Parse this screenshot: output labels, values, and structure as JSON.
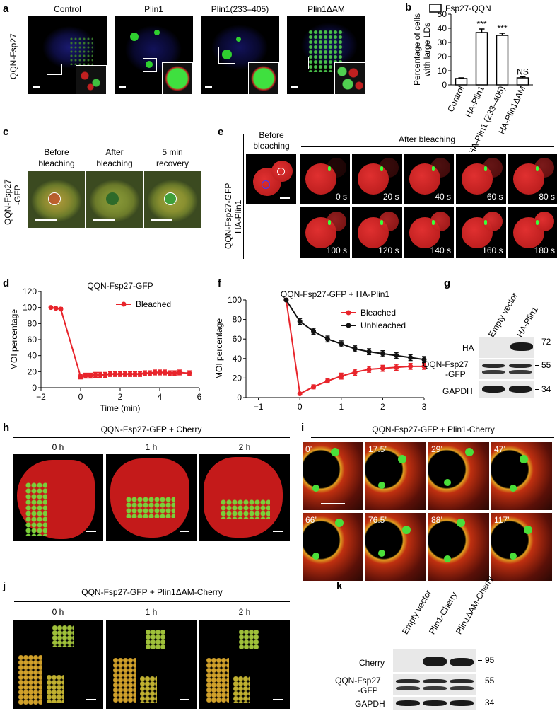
{
  "panel_a": {
    "letter": "a",
    "row_label": "QQN-Fsp27",
    "columns": [
      "Control",
      "Plin1",
      "Plin1(233–405)",
      "Plin1ΔAM"
    ]
  },
  "panel_b": {
    "letter": "b",
    "legend": "Fsp27-QQN",
    "ylabel": "Percentage of cells with large LDs",
    "ylabel_lines": [
      "Percentage of cells",
      "with large LDs"
    ],
    "sig": [
      "***",
      "***",
      "NS"
    ]
  },
  "panel_c": {
    "letter": "c",
    "row_label_lines": [
      "QQN-Fsp27",
      "-GFP"
    ],
    "columns": [
      [
        "Before",
        "bleaching"
      ],
      [
        "After",
        "bleaching"
      ],
      [
        "5 min",
        "recovery"
      ]
    ]
  },
  "panel_e": {
    "letter": "e",
    "row_label_lines": [
      "QQN-Fsp27-GFP",
      "HA-Plin1"
    ],
    "before": [
      "Before",
      "bleaching"
    ],
    "after": "After bleaching",
    "times": [
      "0 s",
      "20 s",
      "40 s",
      "60 s",
      "80 s",
      "100 s",
      "120 s",
      "140 s",
      "160 s",
      "180 s"
    ]
  },
  "panel_d": {
    "letter": "d"
  },
  "panel_f": {
    "letter": "f"
  },
  "panel_g": {
    "letter": "g",
    "lanes": [
      "Empty vector",
      "HA-Plin1"
    ],
    "rows": [
      "HA",
      "QQN-Fsp27",
      "-GFP",
      "GAPDH"
    ],
    "markers": [
      "72",
      "55",
      "34"
    ]
  },
  "panel_h": {
    "letter": "h",
    "title": "QQN-Fsp27-GFP + Cherry",
    "times": [
      "0 h",
      "1 h",
      "2 h"
    ]
  },
  "panel_i": {
    "letter": "i",
    "title": "QQN-Fsp27-GFP + Plin1-Cherry",
    "times": [
      "0’",
      "17.5’",
      "29’",
      "47’",
      "66’",
      "76.5’",
      "88’",
      "117’"
    ]
  },
  "panel_j": {
    "letter": "j",
    "title": "QQN-Fsp27-GFP + Plin1ΔAM-Cherry",
    "times": [
      "0 h",
      "1 h",
      "2 h"
    ]
  },
  "panel_k": {
    "letter": "k",
    "lanes": [
      "Empty vector",
      "Plin1-Cherry",
      "Plin1ΔAM-Cherry"
    ],
    "rows": [
      "Cherry",
      "QQN-Fsp27",
      "-GFP",
      "GAPDH"
    ],
    "markers": [
      "95",
      "55",
      "34"
    ]
  },
  "chart_data": [
    {
      "type": "bar",
      "panel": "b",
      "categories": [
        "Control",
        "HA-Plin1",
        "HA-Plin1 (233–405)",
        "HA-Plin1ΔAM"
      ],
      "series": [
        {
          "name": "Fsp27-QQN",
          "values": [
            4.5,
            37,
            35,
            5
          ],
          "errors": [
            0.5,
            2.5,
            1.5,
            0.8
          ]
        }
      ],
      "ylabel": "Percentage of cells with large LDs",
      "ylim": [
        0,
        50
      ],
      "yticks": [
        0,
        10,
        20,
        30,
        40,
        50
      ],
      "annotations": [
        "***",
        "***",
        "NS"
      ]
    },
    {
      "type": "line",
      "panel": "d",
      "title": "QQN-Fsp27-GFP",
      "xlabel": "Time (min)",
      "ylabel": "MOI percentage",
      "xlim": [
        -2,
        6
      ],
      "ylim": [
        0,
        120
      ],
      "xticks": [
        -2,
        0,
        2,
        4,
        6
      ],
      "yticks": [
        0,
        20,
        40,
        60,
        80,
        100,
        120
      ],
      "legend": "top-right",
      "series": [
        {
          "name": "Bleached",
          "color": "#e8242b",
          "x": [
            -1.5,
            -1.25,
            -1,
            0,
            0.25,
            0.5,
            0.75,
            1,
            1.25,
            1.5,
            1.75,
            2,
            2.25,
            2.5,
            2.75,
            3,
            3.25,
            3.5,
            3.75,
            4,
            4.25,
            4.5,
            4.75,
            5,
            5.5
          ],
          "y": [
            100,
            99,
            98,
            14,
            15,
            15,
            16,
            16,
            16,
            17,
            17,
            17,
            17,
            17,
            17,
            17,
            18,
            18,
            19,
            19,
            19,
            18,
            18,
            19,
            18
          ],
          "err": [
            1,
            1,
            2,
            3,
            3,
            3,
            3,
            3,
            3,
            3,
            3,
            3,
            3,
            3,
            3,
            3,
            3,
            3,
            3,
            3,
            3,
            3,
            3,
            3,
            3
          ]
        }
      ]
    },
    {
      "type": "line",
      "panel": "f",
      "title": "QQN-Fsp27-GFP + HA-Plin1",
      "xlabel": "Time (min)",
      "ylabel": "MOI percentage",
      "xlim": [
        -1.3,
        3
      ],
      "ylim": [
        0,
        100
      ],
      "xticks": [
        -1,
        0,
        1,
        2,
        3
      ],
      "yticks": [
        0,
        20,
        40,
        60,
        80,
        100
      ],
      "legend": "top-right",
      "series": [
        {
          "name": "Bleached",
          "color": "#e8242b",
          "x": [
            -0.33,
            0,
            0.33,
            0.67,
            1,
            1.33,
            1.67,
            2,
            2.33,
            2.67,
            3
          ],
          "y": [
            100,
            4,
            11,
            17,
            22,
            26,
            29,
            30,
            31,
            32,
            32
          ],
          "err": [
            0,
            1,
            2,
            2,
            3,
            3,
            3,
            3,
            3,
            3,
            3
          ]
        },
        {
          "name": "Unbleached",
          "color": "#111111",
          "x": [
            -0.33,
            0,
            0.33,
            0.67,
            1,
            1.33,
            1.67,
            2,
            2.33,
            2.67,
            3
          ],
          "y": [
            100,
            78,
            68,
            60,
            55,
            50,
            47,
            45,
            43,
            41,
            39
          ],
          "err": [
            0,
            3,
            3,
            3,
            3,
            3,
            3,
            3,
            3,
            3,
            3
          ]
        }
      ]
    }
  ]
}
